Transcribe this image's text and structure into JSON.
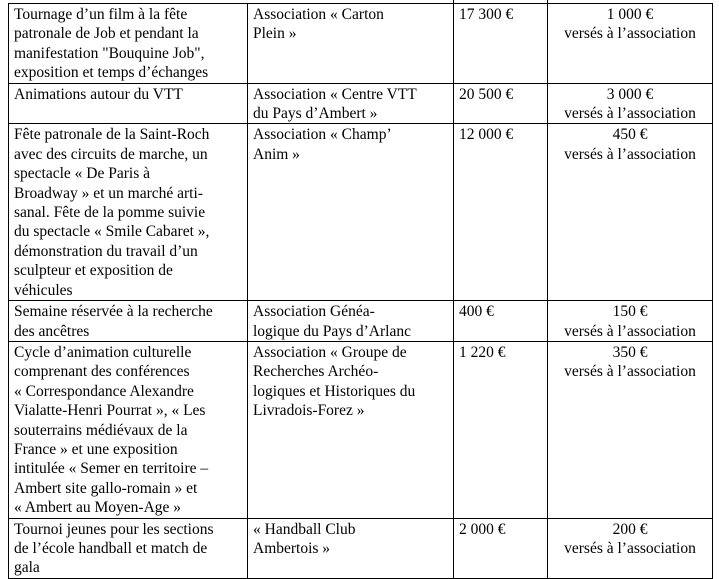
{
  "page": {
    "background_color": "#ffffff",
    "text_color": "#000000",
    "border_color": "#000000"
  },
  "table": {
    "rows": [
      {
        "description": "Tournage d’un film à la fête\npatronale de Job et pendant la\nmanifestation \"Bouquine Job\",\nexposition et temps d’échanges",
        "association": "Association « Carton\nPlein »",
        "amount": "17 300 €",
        "paid": "1 000 €\nversés à l’association"
      },
      {
        "description": "Animations autour du VTT",
        "association": "Association « Centre VTT\ndu Pays d’Ambert »",
        "amount": "20 500 €",
        "paid": "3 000 €\nversés à l’association"
      },
      {
        "description": "Fête patronale de la Saint-Roch\navec des circuits de marche, un\nspectacle « De Paris à\nBroadway » et un marché arti-\nsanal. Fête de la pomme suivie\ndu spectacle « Smile Cabaret »,\ndémonstration du travail d’un\nsculpteur et exposition de\nvéhicules",
        "association": "Association « Champ’\nAnim »",
        "amount": "12 000 €",
        "paid": "450 €\nversés à l’association"
      },
      {
        "description": "Semaine réservée à la recherche\ndes ancêtres",
        "association": "Association Généa-\nlogique du Pays d’Arlanc",
        "amount": "400 €",
        "paid": "150 €\nversés à l’association"
      },
      {
        "description": "Cycle d’animation culturelle\ncomprenant des conférences\n« Correspondance Alexandre\nVialatte-Henri Pourrat », « Les\nsouterrains médiévaux de la\nFrance » et une exposition\nintitulée « Semer en territoire –\nAmbert site gallo-romain » et\n« Ambert au Moyen-Age »",
        "association": "Association « Groupe de\nRecherches Archéo-\nlogiques et Historiques du\nLivradois-Forez »",
        "amount": "1 220 €",
        "paid": "350 €\nversés à l’association"
      },
      {
        "description": "Tournoi jeunes pour les sections\nde l’école handball et match de\ngala",
        "association": "« Handball Club\nAmbertois »",
        "amount": "2 000 €",
        "paid": "200 €\nversés à l’association"
      }
    ]
  }
}
